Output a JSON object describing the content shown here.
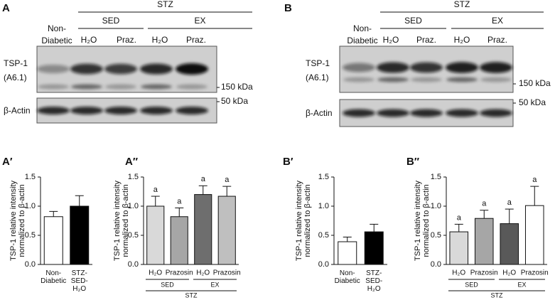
{
  "blots": [
    {
      "panel": "A",
      "group": "STZ",
      "subgroups": [
        "SED",
        "EX"
      ],
      "lanes": [
        "Non-Diabetic",
        "H₂O",
        "Praz.",
        "H₂O",
        "Praz."
      ],
      "row_labels": [
        "TSP-1",
        "(A6.1)",
        "β-Actin"
      ],
      "markers": [
        "150 kDa",
        "50 kDa"
      ]
    },
    {
      "panel": "B",
      "group": "STZ",
      "subgroups": [
        "SED",
        "EX"
      ],
      "lanes": [
        "Non-Diabetic",
        "H₂O",
        "Praz.",
        "H₂O",
        "Praz."
      ],
      "row_labels": [
        "TSP-1",
        "(A6.1)",
        "β-Actin"
      ],
      "markers": [
        "150 kDa",
        "50 kDa"
      ]
    }
  ],
  "chart_data": [
    {
      "type": "bar",
      "panel": "A′",
      "ylabel": [
        "TSP-1 relative intensity",
        "normalized to β-actin"
      ],
      "categories": [
        "Non-Diabetic",
        "STZ-SED-H₂O"
      ],
      "values": [
        0.82,
        1.0
      ],
      "errors": [
        0.09,
        0.18
      ],
      "colors": [
        "#ffffff",
        "#000000"
      ],
      "ylim": [
        0,
        1.5
      ],
      "yticks": [
        {
          "value": 0,
          "label": "0.0"
        },
        0.5,
        {
          "value": 1,
          "label": "1.0"
        },
        1.5
      ]
    },
    {
      "type": "bar",
      "panel": "A″",
      "ylabel": [
        "TSP-1 relative intensity",
        "normalized to β-actin"
      ],
      "categories": [
        "H₂O",
        "Prazosin",
        "H₂O",
        "Prazosin"
      ],
      "values": [
        1.0,
        0.82,
        1.2,
        1.17
      ],
      "errors": [
        0.17,
        0.15,
        0.15,
        0.17
      ],
      "colors": [
        "#d9d9d9",
        "#a6a6a6",
        "#6e6e6e",
        "#bfbfbf"
      ],
      "significance": [
        "a",
        "a",
        "a",
        "a"
      ],
      "group_labels": [
        "SED",
        "EX"
      ],
      "outer_label": "STZ",
      "ylim": [
        0,
        1.5
      ],
      "yticks": [
        {
          "value": 0,
          "label": "0.0"
        },
        0.5,
        {
          "value": 1,
          "label": "1.0"
        },
        1.5
      ]
    },
    {
      "type": "bar",
      "panel": "B′",
      "ylabel": [
        "TSP-1 relative intensity",
        "normalized to β-actin"
      ],
      "categories": [
        "Non-Diabetic",
        "STZ-SED-H₂O"
      ],
      "values": [
        0.39,
        0.56
      ],
      "errors": [
        0.08,
        0.13
      ],
      "colors": [
        "#ffffff",
        "#000000"
      ],
      "ylim": [
        0,
        1.5
      ],
      "yticks": [
        {
          "value": 0,
          "label": "0.0"
        },
        0.5,
        {
          "value": 1,
          "label": "1.0"
        },
        1.5
      ]
    },
    {
      "type": "bar",
      "panel": "B″",
      "ylabel": [
        "TSP-1 relative intensity",
        "normalized to β-actin"
      ],
      "categories": [
        "H₂O",
        "Prazosin",
        "H₂O",
        "Prazosin"
      ],
      "values": [
        0.56,
        0.79,
        0.7,
        1.01
      ],
      "errors": [
        0.13,
        0.14,
        0.25,
        0.33
      ],
      "colors": [
        "#d9d9d9",
        "#a6a6a6",
        "#595959",
        "#ffffff"
      ],
      "significance": [
        "a",
        "a",
        "a",
        "a"
      ],
      "group_labels": [
        "SED",
        "EX"
      ],
      "outer_label": "STZ",
      "ylim": [
        0,
        1.5
      ],
      "yticks": [
        {
          "value": 0,
          "label": "0.0"
        },
        0.5,
        {
          "value": 1,
          "label": "1.0"
        },
        1.5
      ]
    }
  ]
}
